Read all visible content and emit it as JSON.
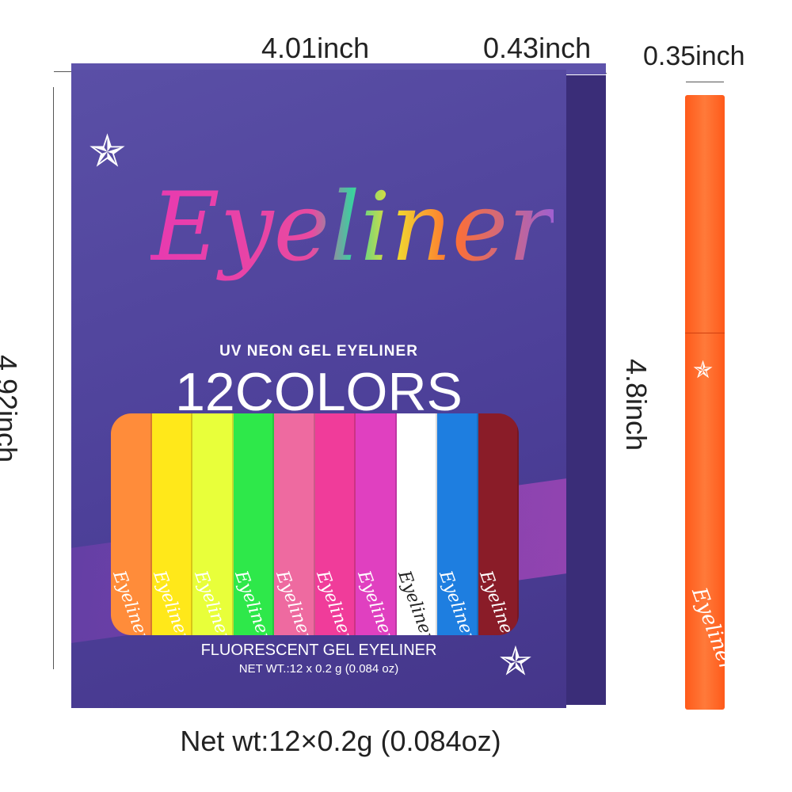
{
  "dimensions": {
    "box_width": "4.01inch",
    "box_depth": "0.43inch",
    "box_height": "4.92inch",
    "pen_width": "0.35inch",
    "pen_length": "4.8inch"
  },
  "box": {
    "logo_text": "Eyeliner",
    "subtitle": "UV NEON GEL EYELINER",
    "headline": "12COLORS",
    "bottom_title": "FLUORESCENT GEL EYELINER",
    "net_wt": "NET WT.:12 x 0.2 g (0.084 oz)",
    "pen_label": "Eyeliner"
  },
  "caption": "Net wt:12×0.2g (0.084oz)",
  "pen_colors": [
    "#ff8c3a",
    "#ffe81a",
    "#e8ff3a",
    "#2ee84a",
    "#ee6aa0",
    "#f03c9a",
    "#e040c0",
    "#ffffff",
    "#1e7ee0",
    "#8a1c28"
  ],
  "icons": [
    "star-logo-icon"
  ]
}
